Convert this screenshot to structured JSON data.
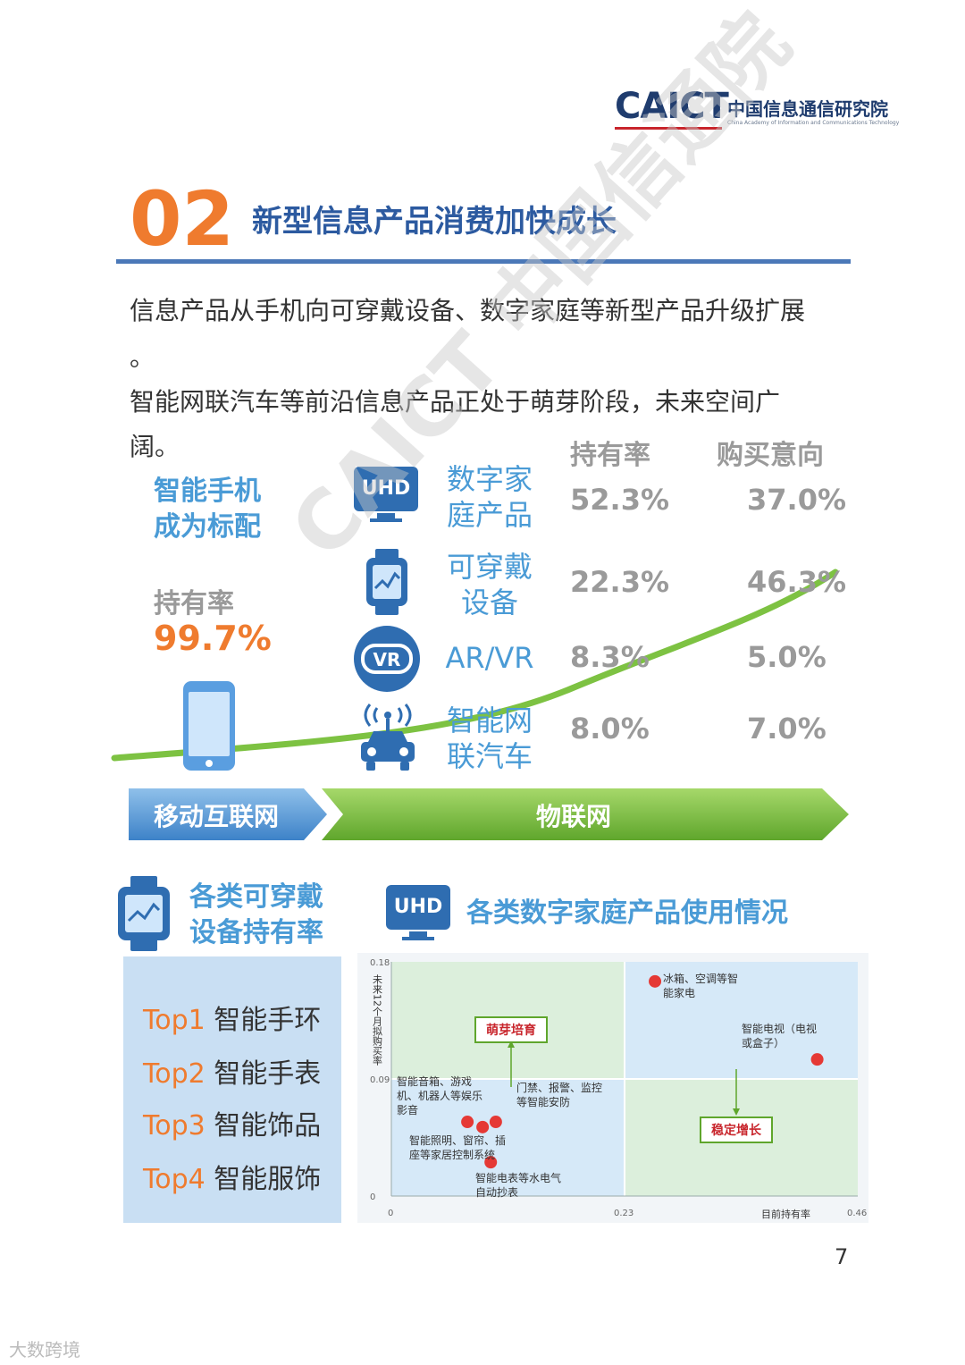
{
  "logo": {
    "main": "CAICT",
    "cn": "中国信息通信研究院",
    "en": "China Academy of Information and Communications Technology"
  },
  "section": {
    "number": "02",
    "title": "新型信息产品消费加快成长"
  },
  "paragraph": [
    "信息产品从手机向可穿戴设备、数字家庭等新型产品升级扩展",
    "。",
    "智能网联汽车等前沿信息产品正处于萌芽阶段，未来空间广",
    "阔。"
  ],
  "table_headers": {
    "ownership": "持有率",
    "purchase_intent": "购买意向"
  },
  "smartphone": {
    "title_line1": "智能手机",
    "title_line2": "成为标配",
    "own_label": "持有率",
    "own_value": "99.7%"
  },
  "products": [
    {
      "icon": "uhd-tv-icon",
      "icon_text": "UHD",
      "name_line1": "数字家",
      "name_line2": "庭产品",
      "ownership": "52.3%",
      "purchase_intent": "37.0%"
    },
    {
      "icon": "smartwatch-icon",
      "name_line1": "可穿戴",
      "name_line2": "设备",
      "ownership": "22.3%",
      "purchase_intent": "46.3%"
    },
    {
      "icon": "vr-headset-icon",
      "icon_text": "VR",
      "name_line1": "AR/VR",
      "name_line2": "",
      "ownership": "8.3%",
      "purchase_intent": "5.0%"
    },
    {
      "icon": "connected-car-icon",
      "name_line1": "智能网",
      "name_line2": "联汽车",
      "ownership": "8.0%",
      "purchase_intent": "7.0%"
    }
  ],
  "stages": {
    "mobile": "移动互联网",
    "iot": "物联网"
  },
  "watermark": "CAICT 中国信通院",
  "wearables": {
    "title_line1": "各类可穿戴",
    "title_line2": "设备持有率",
    "items": [
      {
        "rank": "Top1",
        "name": "智能手环"
      },
      {
        "rank": "Top2",
        "name": "智能手表"
      },
      {
        "rank": "Top3",
        "name": "智能饰品"
      },
      {
        "rank": "Top4",
        "name": "智能服饰"
      }
    ]
  },
  "home_chart": {
    "title": "各类数字家庭产品使用情况",
    "icon_text": "UHD",
    "ylabel": "未来12个月拟购买率",
    "xlabel": "目前持有率",
    "y_ticks": [
      "0.18",
      "0.09",
      "0"
    ],
    "x_ticks": [
      "0",
      "0.23",
      "0.46"
    ],
    "quadrant_labels": {
      "emerging": "萌芽培育",
      "stable": "稳定增长"
    },
    "point_labels": {
      "fridge": [
        "冰箱、空调等智",
        "能家电"
      ],
      "tv": [
        "智能电视（电视",
        "或盒子）"
      ],
      "speaker": [
        "智能音箱、游戏",
        "机、机器人等娱乐",
        "影音"
      ],
      "security": [
        "门禁、报警、监控",
        "等智能安防"
      ],
      "lighting": [
        "智能照明、窗帘、插",
        "座等家居控制系统"
      ],
      "meter": [
        "智能电表等水电气",
        "自动抄表"
      ]
    }
  },
  "chart_data": {
    "type": "scatter",
    "title": "各类数字家庭产品使用情况",
    "xlabel": "目前持有率",
    "ylabel": "未来12个月拟购买率",
    "xlim": [
      0,
      0.46
    ],
    "ylim": [
      0,
      0.18
    ],
    "x_ticks": [
      0,
      0.23,
      0.46
    ],
    "y_ticks": [
      0,
      0.09,
      0.18
    ],
    "points": [
      {
        "label": "冰箱、空调等智能家电",
        "x": 0.26,
        "y": 0.165
      },
      {
        "label": "智能电视（电视或盒子）",
        "x": 0.42,
        "y": 0.105
      },
      {
        "label": "智能照明、窗帘、插座等家居控制系统",
        "x": 0.075,
        "y": 0.057
      },
      {
        "label": "智能音箱、游戏机、机器人等娱乐影音",
        "x": 0.09,
        "y": 0.053
      },
      {
        "label": "门禁、报警、监控等智能安防",
        "x": 0.103,
        "y": 0.057
      },
      {
        "label": "智能电表等水电气自动抄表",
        "x": 0.098,
        "y": 0.026
      }
    ],
    "quadrant_colors": {
      "top_left": "#dcefdc",
      "top_right": "#d6e9f8",
      "bottom_left": "#d6e9f8",
      "bottom_right": "#dcefdc"
    },
    "point_color": "#e53935"
  },
  "page_number": "7",
  "footer": "大数跨境",
  "colors": {
    "orange": "#ef7b2e",
    "blue": "#4a9bd6",
    "dark_blue": "#2f6db1",
    "green": "#7dc242",
    "gray": "#9a9a9a"
  }
}
